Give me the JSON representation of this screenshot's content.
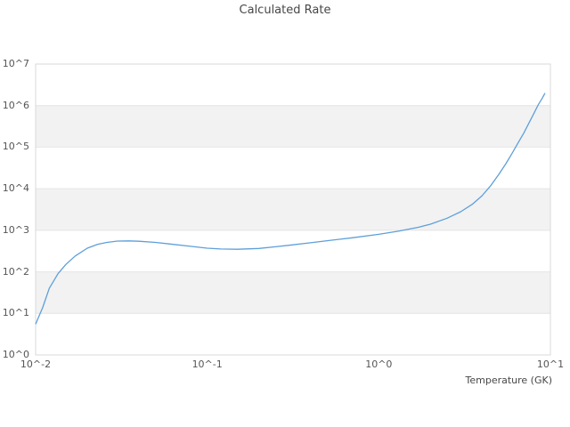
{
  "title": "Calculated Rate",
  "xlabel": "Temperature (GK)",
  "colors": {
    "background": "#ffffff",
    "line": "#5e9fd9",
    "band": "#f2f2f2",
    "grid": "#e4e4e4",
    "border": "#d9d9d9",
    "tick_text": "#555555",
    "title_text": "#474747"
  },
  "axes": {
    "x_tick_labels": [
      "10^-2",
      "10^-1",
      "10^0",
      "10^1"
    ],
    "y_tick_labels": [
      "10^0",
      "10^1",
      "10^2",
      "10^3",
      "10^4",
      "10^5",
      "10^6",
      "10^7"
    ],
    "x_tick_exponents": [
      -2,
      -1,
      0,
      1
    ],
    "y_tick_exponents": [
      0,
      1,
      2,
      3,
      4,
      5,
      6,
      7
    ]
  },
  "chart_data": {
    "type": "line",
    "title": "Calculated Rate",
    "xlabel": "Temperature (GK)",
    "ylabel": "",
    "x_scale": "log",
    "y_scale": "log",
    "xlim": [
      0.01,
      10
    ],
    "ylim": [
      1,
      10000000
    ],
    "legend": "none",
    "grid": "horizontal decade gridlines, alternating shaded decade bands",
    "shaded_decades_log10": [
      1,
      3,
      5
    ],
    "series": [
      {
        "name": "calculated_rate",
        "x": [
          0.01,
          0.011,
          0.012,
          0.0135,
          0.015,
          0.017,
          0.02,
          0.023,
          0.026,
          0.03,
          0.035,
          0.04,
          0.05,
          0.06,
          0.08,
          0.1,
          0.12,
          0.15,
          0.2,
          0.25,
          0.3,
          0.4,
          0.5,
          0.7,
          1.0,
          1.3,
          1.7,
          2.0,
          2.5,
          3.0,
          3.5,
          4.0,
          4.5,
          5.0,
          5.5,
          6.0,
          6.5,
          7.0,
          7.5,
          8.0,
          8.5,
          9.0,
          9.3
        ],
        "y": [
          5.5,
          14,
          40,
          90,
          150,
          240,
          370,
          460,
          510,
          550,
          555,
          545,
          510,
          470,
          410,
          370,
          355,
          350,
          365,
          400,
          435,
          500,
          560,
          660,
          800,
          950,
          1180,
          1400,
          1950,
          2800,
          4200,
          6800,
          12000,
          22000,
          40000,
          73000,
          130000,
          220000,
          380000,
          640000,
          1050000,
          1550000,
          2000000
        ]
      }
    ]
  }
}
